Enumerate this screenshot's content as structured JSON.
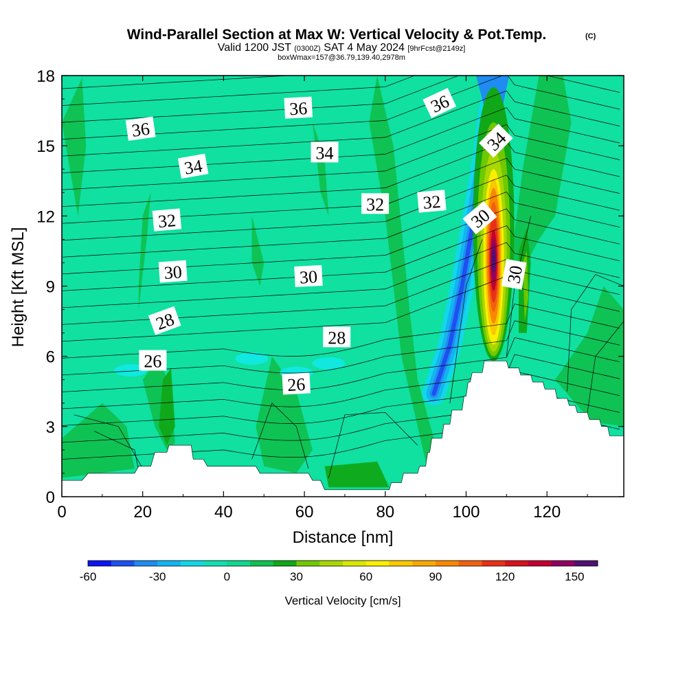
{
  "chart_data": {
    "type": "heatmap",
    "title": "Wind-Parallel Section at Max W: Vertical Velocity & Pot.Temp.",
    "copyright_mark": "(C)",
    "subtitle": {
      "valid_prefix": "Valid 1200 JST",
      "utc": "(0300Z)",
      "date": "SAT 4 May 2024",
      "forecast": "[9hrFcst@2149z]"
    },
    "box_info": "boxWmax=157@36.79,139.40,2978m",
    "xlabel": "Distance [nm]",
    "ylabel": "Height [Kft MSL]",
    "xlim": [
      0,
      139
    ],
    "ylim": [
      0,
      18
    ],
    "x_ticks": [
      0,
      20,
      40,
      60,
      80,
      100,
      120
    ],
    "y_ticks": [
      0,
      3,
      6,
      9,
      12,
      15,
      18
    ],
    "colorbar": {
      "label": "Vertical Velocity [cm/s]",
      "tick_labels": [
        "-60",
        "-30",
        "0",
        "30",
        "60",
        "90",
        "120",
        "150"
      ],
      "tick_values": [
        -60,
        -30,
        0,
        30,
        60,
        90,
        120,
        150
      ],
      "range": [
        -60,
        160
      ],
      "colors": [
        "#0a14f0",
        "#1e50f0",
        "#1e8cf0",
        "#14b4f0",
        "#10d8e8",
        "#10e0b0",
        "#10d890",
        "#10c050",
        "#10a818",
        "#70c800",
        "#a8d800",
        "#d8e800",
        "#f8f000",
        "#f8c800",
        "#f8a800",
        "#f88800",
        "#f06010",
        "#e83018",
        "#d81020",
        "#c00030",
        "#900060",
        "#501070"
      ]
    },
    "terrain_top_kft": [
      [
        0,
        0.7
      ],
      [
        5,
        0.7
      ],
      [
        6.5,
        1.0
      ],
      [
        18,
        1.0
      ],
      [
        19,
        1.3
      ],
      [
        22,
        1.3
      ],
      [
        23,
        1.9
      ],
      [
        26,
        1.9
      ],
      [
        26.5,
        2.2
      ],
      [
        32,
        2.2
      ],
      [
        32.5,
        1.6
      ],
      [
        35,
        1.6
      ],
      [
        36,
        1.3
      ],
      [
        48,
        1.3
      ],
      [
        49,
        1.0
      ],
      [
        61,
        1.0
      ],
      [
        62,
        0.7
      ],
      [
        64,
        0.7
      ],
      [
        65,
        0.3
      ],
      [
        81,
        0.3
      ],
      [
        81.5,
        0.6
      ],
      [
        84,
        0.6
      ],
      [
        84.5,
        1.0
      ],
      [
        88,
        1.0
      ],
      [
        88.5,
        1.3
      ],
      [
        90,
        1.3
      ],
      [
        90.5,
        1.9
      ],
      [
        91,
        1.9
      ],
      [
        91.5,
        2.5
      ],
      [
        94,
        2.5
      ],
      [
        94.5,
        3.1
      ],
      [
        96,
        3.1
      ],
      [
        96.5,
        3.7
      ],
      [
        99,
        3.7
      ],
      [
        99.5,
        4.3
      ],
      [
        100,
        4.3
      ],
      [
        100.5,
        4.9
      ],
      [
        101,
        4.9
      ],
      [
        101.5,
        5.3
      ],
      [
        104,
        5.3
      ],
      [
        104.5,
        5.8
      ],
      [
        110,
        5.8
      ],
      [
        110.5,
        5.5
      ],
      [
        113,
        5.5
      ],
      [
        113.5,
        5.2
      ],
      [
        116,
        5.2
      ],
      [
        116.5,
        4.9
      ],
      [
        119,
        4.9
      ],
      [
        119.5,
        4.6
      ],
      [
        122,
        4.6
      ],
      [
        122.5,
        4.2
      ],
      [
        125,
        4.2
      ],
      [
        125.5,
        3.9
      ],
      [
        127,
        3.9
      ],
      [
        127.5,
        3.6
      ],
      [
        130,
        3.6
      ],
      [
        130.5,
        3.3
      ],
      [
        133,
        3.3
      ],
      [
        133.5,
        3.0
      ],
      [
        135,
        3.0
      ],
      [
        135.5,
        2.6
      ],
      [
        139,
        2.6
      ]
    ],
    "theta_contour_labels": [
      {
        "text": "36",
        "x": 19.5,
        "y": 15.7,
        "angle": -8
      },
      {
        "text": "36",
        "x": 58.5,
        "y": 16.6,
        "angle": -3
      },
      {
        "text": "36",
        "x": 93.5,
        "y": 16.8,
        "angle": -25
      },
      {
        "text": "34",
        "x": 32.5,
        "y": 14.1,
        "angle": -10
      },
      {
        "text": "34",
        "x": 65,
        "y": 14.7,
        "angle": 0
      },
      {
        "text": "34",
        "x": 107.5,
        "y": 15.2,
        "angle": -45
      },
      {
        "text": "32",
        "x": 26,
        "y": 11.8,
        "angle": -5
      },
      {
        "text": "32",
        "x": 77.5,
        "y": 12.5,
        "angle": 0
      },
      {
        "text": "32",
        "x": 91.5,
        "y": 12.6,
        "angle": -5
      },
      {
        "text": "30",
        "x": 27.5,
        "y": 9.6,
        "angle": -4
      },
      {
        "text": "30",
        "x": 61,
        "y": 9.4,
        "angle": -3
      },
      {
        "text": "30",
        "x": 103.5,
        "y": 11.9,
        "angle": -40
      },
      {
        "text": "30",
        "x": 112,
        "y": 9.5,
        "angle": -80
      },
      {
        "text": "28",
        "x": 25.5,
        "y": 7.5,
        "angle": -20
      },
      {
        "text": "28",
        "x": 68,
        "y": 6.8,
        "angle": 0
      },
      {
        "text": "26",
        "x": 22.5,
        "y": 5.8,
        "angle": 0
      },
      {
        "text": "26",
        "x": 58,
        "y": 4.8,
        "angle": -3
      }
    ],
    "velocity_features": [
      {
        "name": "updraft-core",
        "x": 106.8,
        "y": 10.0,
        "value": 157
      },
      {
        "name": "downdraft-band",
        "x": 102,
        "y": 11.5,
        "value": -50
      },
      {
        "name": "background",
        "value": 5
      }
    ]
  }
}
